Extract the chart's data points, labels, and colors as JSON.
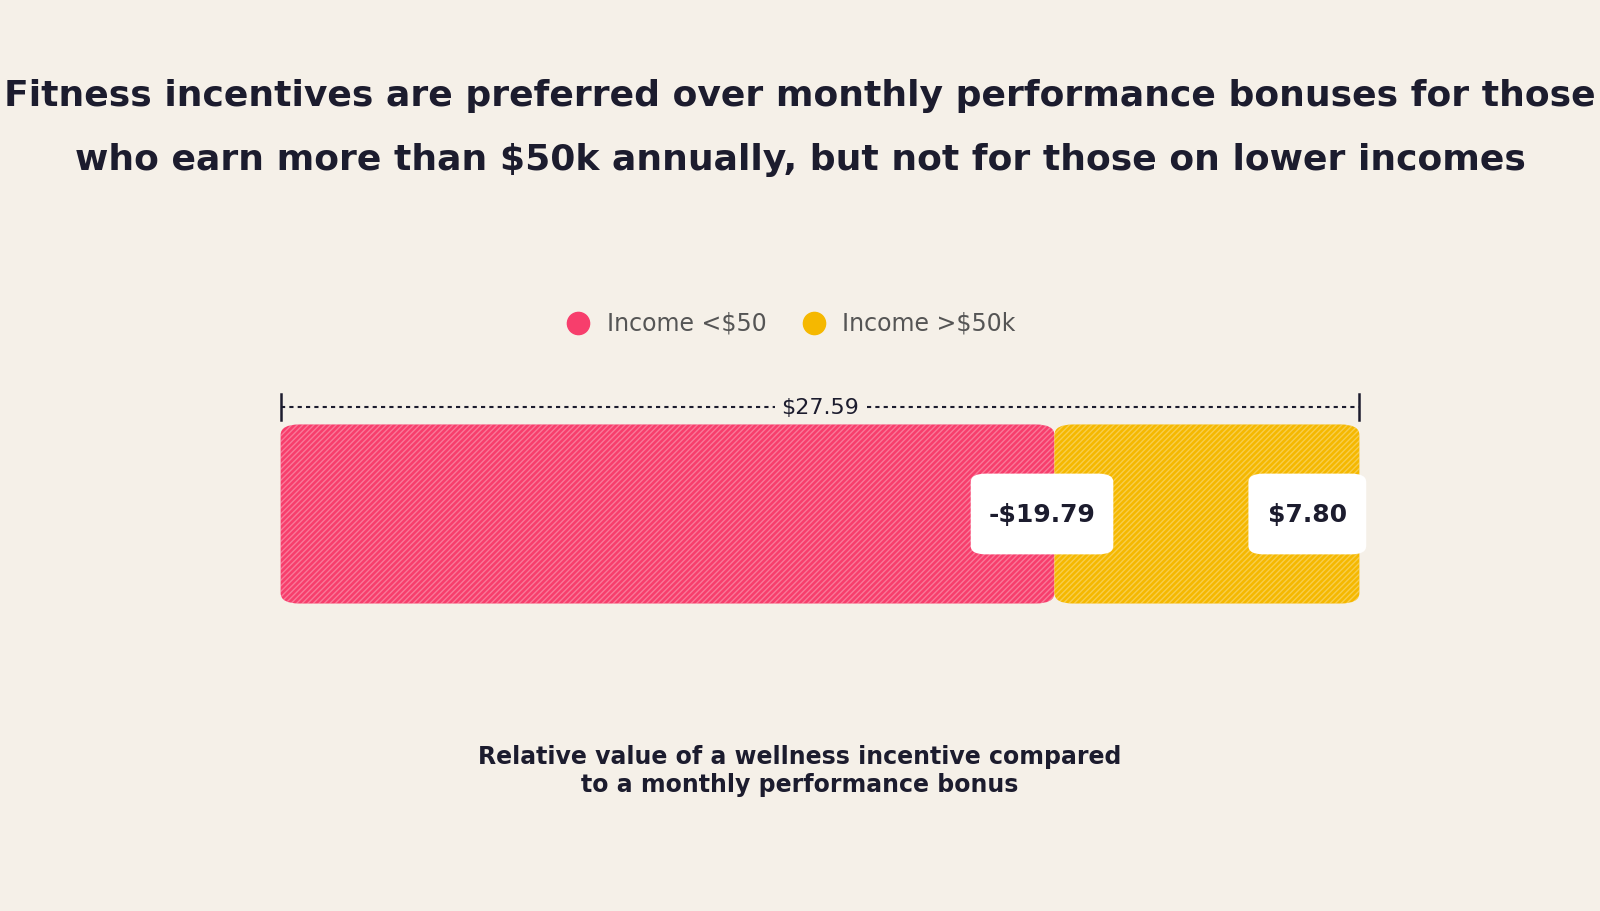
{
  "title_line1": "Fitness incentives are preferred over monthly performance bonuses for those",
  "title_line2": "who earn more than $50k annually, but not for those on lower incomes",
  "legend_label_low": "Income <$50",
  "legend_label_high": "Income >$50k",
  "annotation_center": "$27.59",
  "label_low": "-$19.79",
  "label_high": "$7.80",
  "bar_value_low": 19.79,
  "bar_value_high": 7.8,
  "color_low": "#F73E6C",
  "color_high": "#F5B800",
  "background_color": "#F5F0E8",
  "text_color": "#1C1C2E",
  "legend_text_color": "#555555",
  "xlabel": "Relative value of a wellness incentive compared\nto a monthly performance bonus",
  "title_fontsize": 26,
  "label_fontsize": 17,
  "legend_fontsize": 17,
  "annotation_fontsize": 16,
  "value_fontsize": 18
}
